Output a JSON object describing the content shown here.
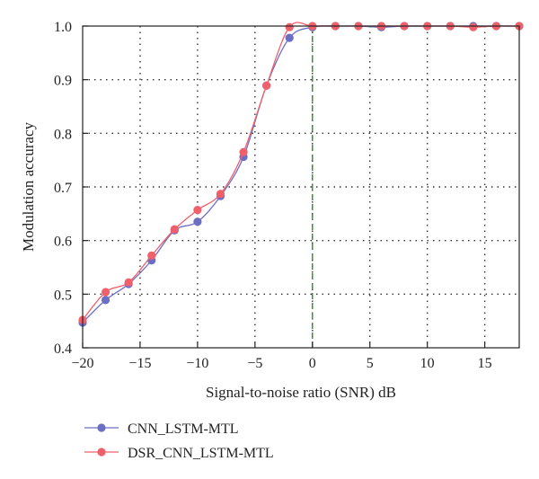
{
  "chart_data": {
    "type": "line",
    "xlabel": "Signal-to-noise ratio (SNR) dB",
    "ylabel": "Modulation accuracy",
    "xlim": [
      -20,
      18
    ],
    "ylim": [
      0.4,
      1.0
    ],
    "x_ticks": [
      -20,
      -15,
      -10,
      -5,
      0,
      5,
      10,
      15
    ],
    "y_ticks": [
      0.4,
      0.5,
      0.6,
      0.7,
      0.8,
      0.9,
      1.0
    ],
    "x_tick_labels": [
      "−20",
      "−15",
      "−10",
      "−5",
      "0",
      "5",
      "10",
      "15"
    ],
    "y_tick_labels": [
      "0.4",
      "0.5",
      "0.6",
      "0.7",
      "0.8",
      "0.9",
      "1.0"
    ],
    "grid": true,
    "vertical_reference_line": {
      "x": 0,
      "color": "#2e8b2e",
      "style": "dashed"
    },
    "legend_position": "bottom-left, below plot",
    "x": [
      -20,
      -18,
      -16,
      -14,
      -12,
      -10,
      -8,
      -6,
      -4,
      -2,
      0,
      2,
      4,
      6,
      8,
      10,
      12,
      14,
      16,
      18
    ],
    "series": [
      {
        "name": "CNN_LSTM-MTL",
        "color": "#6b6fc4",
        "values": [
          0.447,
          0.489,
          0.519,
          0.563,
          0.619,
          0.635,
          0.683,
          0.756,
          0.889,
          0.978,
          0.998,
          1.0,
          1.0,
          0.998,
          1.0,
          1.0,
          1.0,
          1.0,
          1.0,
          1.0
        ]
      },
      {
        "name": "DSR_CNN_LSTM-MTL",
        "color": "#f0606a",
        "values": [
          0.452,
          0.504,
          0.522,
          0.572,
          0.621,
          0.657,
          0.687,
          0.765,
          0.889,
          0.998,
          1.0,
          1.0,
          1.0,
          1.0,
          1.0,
          1.0,
          1.0,
          0.998,
          1.0,
          1.0
        ]
      }
    ]
  }
}
